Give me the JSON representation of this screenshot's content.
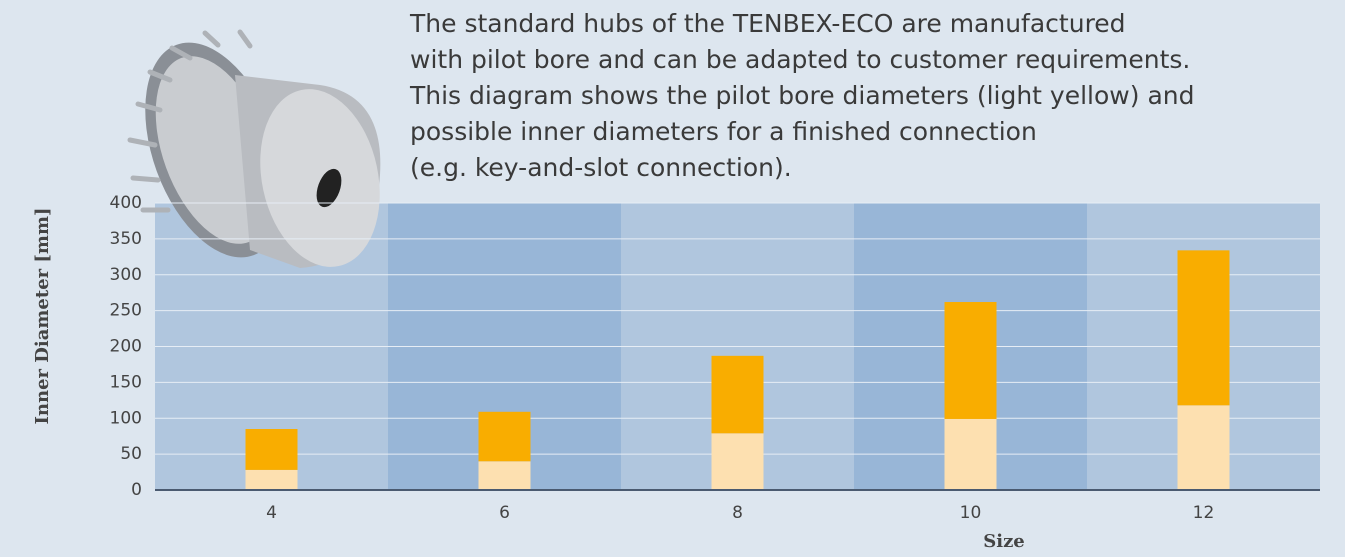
{
  "chart_data": {
    "type": "stacked_bar",
    "description": [
      "The standard hubs of the TENBEX-ECO are manufactured",
      "with pilot bore and can be adapted to customer requirements.",
      "This diagram shows the pilot bore diameters (light yellow) and",
      "possible inner diameters for a finished connection",
      "(e.g. key-and-slot connection)."
    ],
    "x_label": "Size",
    "y_label": "Inner Diameter [mm]",
    "categories": [
      "4",
      "6",
      "8",
      "10",
      "12"
    ],
    "series": [
      {
        "color": "#fde0b0",
        "values": [
          28,
          40,
          79,
          99,
          118
        ]
      },
      {
        "color": "#f9ad00",
        "values": [
          57,
          69,
          108,
          163,
          216
        ]
      }
    ],
    "ylim": [
      0,
      400
    ],
    "yticks": [
      0,
      50,
      100,
      150,
      200,
      250,
      300,
      350,
      400
    ],
    "grid": true
  }
}
